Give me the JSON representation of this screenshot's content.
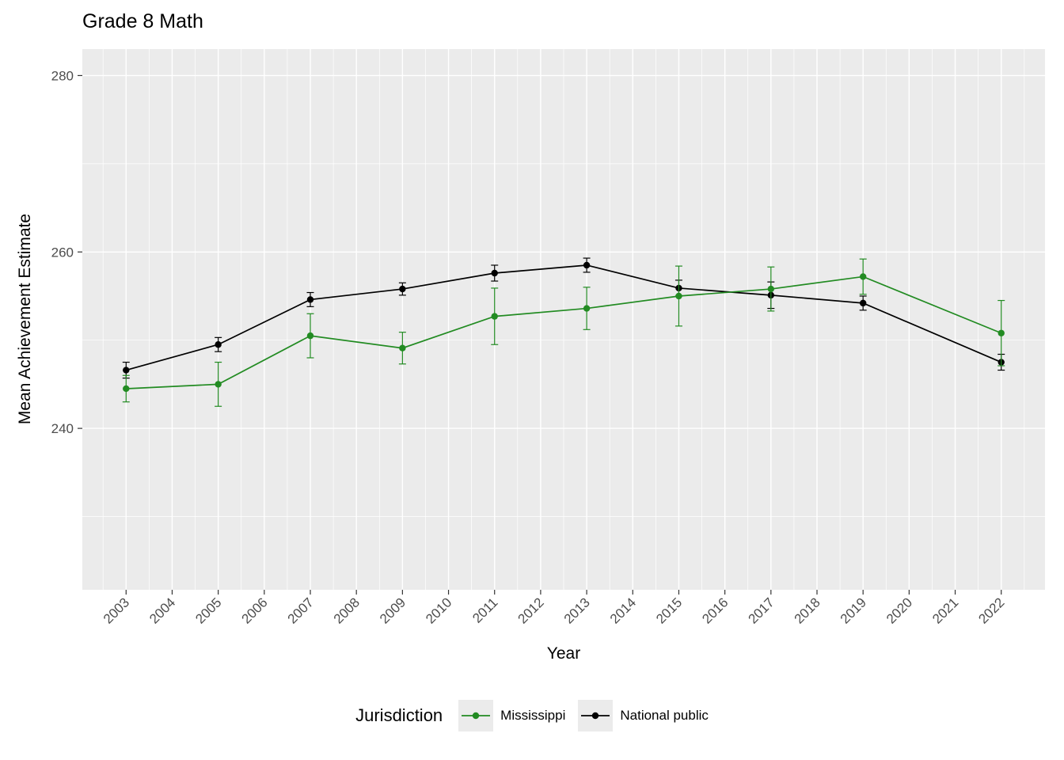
{
  "chart_data": {
    "type": "line",
    "title": "Grade 8 Math",
    "xlabel": "Year",
    "ylabel": "Mean Achievement Estimate",
    "legend_title": "Jurisdiction",
    "x": [
      2003,
      2005,
      2007,
      2009,
      2011,
      2013,
      2015,
      2017,
      2019,
      2022
    ],
    "x_ticks": [
      2003,
      2004,
      2005,
      2006,
      2007,
      2008,
      2009,
      2010,
      2011,
      2012,
      2013,
      2014,
      2015,
      2016,
      2017,
      2018,
      2019,
      2020,
      2021,
      2022
    ],
    "y_ticks": [
      240,
      260,
      280
    ],
    "y_minor_ticks": [
      230,
      250,
      270
    ],
    "xlim": [
      2002.05,
      2022.95
    ],
    "ylim": [
      221.7,
      283.0
    ],
    "grid": true,
    "legend_position": "bottom",
    "panel_bg": "#EBEBEB",
    "grid_color": "#FFFFFF",
    "tick_label_color": "#4D4D4D",
    "tick_mark_color": "#333333",
    "series": [
      {
        "name": "Mississippi",
        "color": "#228B22",
        "values": [
          244.5,
          245.0,
          250.5,
          249.1,
          252.7,
          253.6,
          255.0,
          255.8,
          257.2,
          250.8
        ],
        "errors": [
          1.5,
          2.5,
          2.5,
          1.8,
          3.2,
          2.4,
          3.4,
          2.5,
          2.0,
          3.7
        ]
      },
      {
        "name": "National public",
        "color": "#000000",
        "values": [
          246.6,
          249.5,
          254.6,
          255.8,
          257.6,
          258.5,
          255.9,
          255.1,
          254.2,
          247.5
        ],
        "errors": [
          0.9,
          0.8,
          0.8,
          0.7,
          0.9,
          0.8,
          0.9,
          1.5,
          0.8,
          0.9
        ]
      }
    ]
  }
}
